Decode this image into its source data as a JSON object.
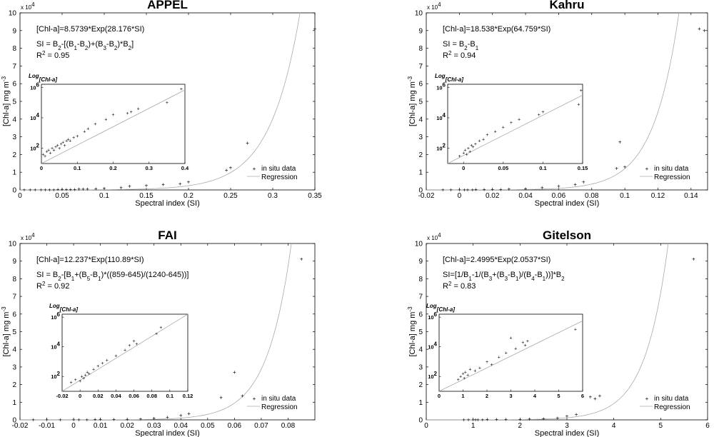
{
  "chart_data": [
    {
      "type": "scatter",
      "title": "APPEL",
      "xlabel": "Spectral index (SI)",
      "ylabel_main": "[Chl-a] mg m",
      "ylabel_sup": "-3",
      "xlim": [
        0,
        0.35
      ],
      "ylim": [
        0,
        10
      ],
      "xticks": [
        0,
        0.05,
        0.1,
        0.15,
        0.2,
        0.25,
        0.3,
        0.35
      ],
      "xtick_labels": [
        "0",
        "0.05",
        "0.1",
        "0.15",
        "0.2",
        "0.25",
        "0.3",
        "0.35"
      ],
      "yticks": [
        0,
        1,
        2,
        3,
        4,
        5,
        6,
        7,
        8,
        9,
        10
      ],
      "ytick_labels": [
        "0",
        "1",
        "2",
        "3",
        "4",
        "5",
        "6",
        "7",
        "8",
        "9",
        "10"
      ],
      "y_multiplier_base": "x 10",
      "y_multiplier_exp": "4",
      "regression": {
        "a": 8.5739,
        "b": 28.176,
        "scale": 10000
      },
      "equation": {
        "main": "[Chl-a]=8.5739*Exp(28.176*SI)"
      },
      "si_def": [
        [
          "SI = B",
          ""
        ],
        [
          "2",
          "sub"
        ],
        [
          "-[(B",
          ""
        ],
        [
          "1",
          "sub"
        ],
        [
          "-B",
          ""
        ],
        [
          "2",
          "sub"
        ],
        [
          ")+(B",
          ""
        ],
        [
          "3",
          "sub"
        ],
        [
          "-B",
          ""
        ],
        [
          "2",
          "sub"
        ],
        [
          ")*B",
          ""
        ],
        [
          "2",
          "sub"
        ],
        [
          "]",
          ""
        ]
      ],
      "r2": {
        "label": "R",
        "sup": "2",
        "value": "=  0.95"
      },
      "points": [
        [
          0.005,
          0.004
        ],
        [
          0.012,
          0.003
        ],
        [
          0.018,
          0.005
        ],
        [
          0.025,
          0.004
        ],
        [
          0.03,
          0.006
        ],
        [
          0.035,
          0.008
        ],
        [
          0.04,
          0.01
        ],
        [
          0.045,
          0.012
        ],
        [
          0.05,
          0.015
        ],
        [
          0.055,
          0.02
        ],
        [
          0.06,
          0.025
        ],
        [
          0.065,
          0.03
        ],
        [
          0.07,
          0.035
        ],
        [
          0.075,
          0.04
        ],
        [
          0.08,
          0.05
        ],
        [
          0.09,
          0.06
        ],
        [
          0.1,
          0.08
        ],
        [
          0.12,
          0.12
        ],
        [
          0.13,
          0.2
        ],
        [
          0.15,
          0.25
        ],
        [
          0.17,
          0.3
        ],
        [
          0.19,
          0.35
        ],
        [
          0.2,
          0.45
        ],
        [
          0.245,
          1.1
        ],
        [
          0.25,
          1.25
        ],
        [
          0.27,
          2.65
        ],
        [
          0.35,
          9.1
        ]
      ],
      "legend": [
        "in situ data",
        "Regression"
      ],
      "inset": {
        "title_main": "Log",
        "title_sub": "[Chl-a]",
        "xlim": [
          0,
          0.4
        ],
        "xticks": [
          0,
          0.1,
          0.2,
          0.3,
          0.4
        ],
        "xtick_labels": [
          "0",
          "0.1",
          "0.2",
          "0.3",
          "0.4"
        ],
        "ylim": [
          1,
          6.2
        ],
        "yticks": [
          2,
          4,
          6
        ],
        "ytick_base": "10",
        "ytick_exps": [
          "2",
          "4",
          "6"
        ],
        "points": [
          [
            0.005,
            1.6
          ],
          [
            0.01,
            1.5
          ],
          [
            0.015,
            1.8
          ],
          [
            0.02,
            1.9
          ],
          [
            0.025,
            1.7
          ],
          [
            0.03,
            2.0
          ],
          [
            0.035,
            1.9
          ],
          [
            0.04,
            2.1
          ],
          [
            0.045,
            2.2
          ],
          [
            0.05,
            2.0
          ],
          [
            0.055,
            2.3
          ],
          [
            0.06,
            2.4
          ],
          [
            0.065,
            2.2
          ],
          [
            0.07,
            2.5
          ],
          [
            0.075,
            2.6
          ],
          [
            0.08,
            2.5
          ],
          [
            0.09,
            2.7
          ],
          [
            0.1,
            2.8
          ],
          [
            0.12,
            3.1
          ],
          [
            0.13,
            3.3
          ],
          [
            0.15,
            3.6
          ],
          [
            0.18,
            3.9
          ],
          [
            0.2,
            4.2
          ],
          [
            0.24,
            4.3
          ],
          [
            0.25,
            4.4
          ],
          [
            0.27,
            4.6
          ],
          [
            0.35,
            5.0
          ],
          [
            0.39,
            5.9
          ]
        ]
      }
    },
    {
      "type": "scatter",
      "title": "Kahru",
      "xlabel": "Spectral index (SI)",
      "ylabel_main": "[Chl-a] mg m",
      "ylabel_sup": "-3",
      "xlim": [
        -0.02,
        0.15
      ],
      "ylim": [
        0,
        10
      ],
      "xticks": [
        -0.02,
        0,
        0.02,
        0.04,
        0.06,
        0.08,
        0.1,
        0.12,
        0.14
      ],
      "xtick_labels": [
        "-0.02",
        "0",
        "0.02",
        "0.04",
        "0.06",
        "0.08",
        "0.1",
        "0.12",
        "0.14"
      ],
      "yticks": [
        0,
        1,
        2,
        3,
        4,
        5,
        6,
        7,
        8,
        9,
        10
      ],
      "ytick_labels": [
        "0",
        "1",
        "2",
        "3",
        "4",
        "5",
        "6",
        "7",
        "8",
        "9",
        "10"
      ],
      "y_multiplier_base": "x 10",
      "y_multiplier_exp": "4",
      "regression": {
        "a": 18.538,
        "b": 64.759,
        "scale": 10000
      },
      "equation": {
        "main": "[Chl-a]=18.538*Exp(64.759*SI)"
      },
      "si_def": [
        [
          "SI = B",
          ""
        ],
        [
          "2",
          "sub"
        ],
        [
          "-B",
          ""
        ],
        [
          "1",
          "sub"
        ]
      ],
      "r2": {
        "label": "R",
        "sup": "2",
        "value": "=  0.94"
      },
      "points": [
        [
          -0.01,
          0.003
        ],
        [
          -0.005,
          0.004
        ],
        [
          0,
          0.005
        ],
        [
          0.003,
          0.006
        ],
        [
          0.005,
          0.008
        ],
        [
          0.008,
          0.01
        ],
        [
          0.01,
          0.012
        ],
        [
          0.015,
          0.015
        ],
        [
          0.02,
          0.02
        ],
        [
          0.025,
          0.03
        ],
        [
          0.03,
          0.04
        ],
        [
          0.04,
          0.06
        ],
        [
          0.05,
          0.12
        ],
        [
          0.06,
          0.2
        ],
        [
          0.07,
          0.3
        ],
        [
          0.075,
          0.45
        ],
        [
          0.095,
          1.2
        ],
        [
          0.1,
          1.3
        ],
        [
          0.097,
          2.7
        ],
        [
          0.145,
          9.1
        ],
        [
          0.148,
          9.0
        ]
      ],
      "legend": [
        "in situ data",
        "Regression"
      ],
      "inset": {
        "title_main": "Log",
        "title_sub": "[Chl-a]",
        "xlim": [
          -0.02,
          0.15
        ],
        "xticks": [
          0,
          0.05,
          0.1,
          0.15
        ],
        "xtick_labels": [
          "0",
          "0.05",
          "0.1",
          "0.15"
        ],
        "ylim": [
          1,
          6.2
        ],
        "yticks": [
          2,
          4,
          6
        ],
        "ytick_base": "10",
        "ytick_exps": [
          "2",
          "4",
          "6"
        ],
        "points": [
          [
            -0.005,
            1.5
          ],
          [
            0,
            1.7
          ],
          [
            0.002,
            1.9
          ],
          [
            0.004,
            1.6
          ],
          [
            0.006,
            2.0
          ],
          [
            0.008,
            1.8
          ],
          [
            0.01,
            2.2
          ],
          [
            0.012,
            2.1
          ],
          [
            0.015,
            2.3
          ],
          [
            0.02,
            2.5
          ],
          [
            0.025,
            2.6
          ],
          [
            0.03,
            2.9
          ],
          [
            0.04,
            3.1
          ],
          [
            0.05,
            3.4
          ],
          [
            0.06,
            3.7
          ],
          [
            0.07,
            3.9
          ],
          [
            0.095,
            4.2
          ],
          [
            0.1,
            4.4
          ],
          [
            0.145,
            4.9
          ],
          [
            0.148,
            5.8
          ]
        ]
      }
    },
    {
      "type": "scatter",
      "title": "FAI",
      "xlabel": "Spectral index (SI)",
      "ylabel_main": "[Chl-a] mg m",
      "ylabel_sup": "-3",
      "xlim": [
        -0.02,
        0.09
      ],
      "ylim": [
        0,
        10
      ],
      "xticks": [
        -0.02,
        -0.01,
        0,
        0.01,
        0.02,
        0.03,
        0.04,
        0.05,
        0.06,
        0.07,
        0.08
      ],
      "xtick_labels": [
        "-0.02",
        "-0.01",
        "0",
        "0.01",
        "0.02",
        "0.03",
        "0.04",
        "0.05",
        "0.06",
        "0.07",
        "0.08"
      ],
      "yticks": [
        0,
        1,
        2,
        3,
        4,
        5,
        6,
        7,
        8,
        9,
        10
      ],
      "ytick_labels": [
        "0",
        "1",
        "2",
        "3",
        "4",
        "5",
        "6",
        "7",
        "8",
        "9",
        "10"
      ],
      "y_multiplier_base": "x 10",
      "y_multiplier_exp": "4",
      "regression": {
        "a": 12.237,
        "b": 110.89,
        "scale": 10000
      },
      "equation": {
        "main": "[Chl-a]=12.237*Exp(110.89*SI)"
      },
      "si_def": [
        [
          "SI = B",
          ""
        ],
        [
          "2",
          "sub"
        ],
        [
          "-[B",
          ""
        ],
        [
          "1",
          "sub"
        ],
        [
          "+(B",
          ""
        ],
        [
          "5",
          "sub"
        ],
        [
          "-B",
          ""
        ],
        [
          "1",
          "sub"
        ],
        [
          ")*((859-645)/(1240-645))]",
          ""
        ]
      ],
      "r2": {
        "label": "R",
        "sup": "2",
        "value": "=  0.92"
      },
      "points": [
        [
          -0.015,
          0.003
        ],
        [
          -0.01,
          0.004
        ],
        [
          -0.005,
          0.005
        ],
        [
          0,
          0.006
        ],
        [
          0.002,
          0.008
        ],
        [
          0.005,
          0.01
        ],
        [
          0.008,
          0.012
        ],
        [
          0.01,
          0.015
        ],
        [
          0.015,
          0.02
        ],
        [
          0.02,
          0.03
        ],
        [
          0.025,
          0.05
        ],
        [
          0.03,
          0.08
        ],
        [
          0.035,
          0.15
        ],
        [
          0.04,
          0.25
        ],
        [
          0.043,
          0.35
        ],
        [
          0.055,
          1.25
        ],
        [
          0.06,
          2.7
        ],
        [
          0.063,
          1.35
        ],
        [
          0.085,
          9.1
        ]
      ],
      "legend": [
        "in situ data",
        "Regression"
      ],
      "inset": {
        "title_main": "Log",
        "title_sub": "[Chl-a]",
        "xlim": [
          -0.02,
          0.12
        ],
        "xticks": [
          -0.02,
          0,
          0.02,
          0.04,
          0.06,
          0.08,
          0.1,
          0.12
        ],
        "xtick_labels": [
          "-0.02",
          "0",
          "0.02",
          "0.04",
          "0.06",
          "0.08",
          "0.1",
          "0.12"
        ],
        "ylim": [
          1,
          6.2
        ],
        "yticks": [
          2,
          4,
          6
        ],
        "ytick_base": "10",
        "ytick_exps": [
          "2",
          "4",
          "6"
        ],
        "points": [
          [
            -0.01,
            1.6
          ],
          [
            -0.005,
            1.8
          ],
          [
            0,
            1.7
          ],
          [
            0.002,
            2.0
          ],
          [
            0.004,
            1.9
          ],
          [
            0.006,
            2.1
          ],
          [
            0.008,
            2.3
          ],
          [
            0.01,
            2.2
          ],
          [
            0.015,
            2.5
          ],
          [
            0.02,
            2.7
          ],
          [
            0.025,
            2.9
          ],
          [
            0.03,
            3.1
          ],
          [
            0.04,
            3.4
          ],
          [
            0.05,
            3.8
          ],
          [
            0.055,
            4.1
          ],
          [
            0.06,
            4.4
          ],
          [
            0.063,
            4.2
          ],
          [
            0.085,
            4.9
          ],
          [
            0.09,
            5.3
          ]
        ]
      }
    },
    {
      "type": "scatter",
      "title": "Gitelson",
      "xlabel": "Spectral index (SI)",
      "ylabel_main": "[Chl-a] mg m",
      "ylabel_sup": "-3",
      "xlim": [
        0,
        6
      ],
      "ylim": [
        0,
        10
      ],
      "xticks": [
        0,
        1,
        2,
        3,
        4,
        5,
        6
      ],
      "xtick_labels": [
        "0",
        "1",
        "2",
        "3",
        "4",
        "5",
        "6"
      ],
      "yticks": [
        0,
        1,
        2,
        3,
        4,
        5,
        6,
        7,
        8,
        9,
        10
      ],
      "ytick_labels": [
        "0",
        "1",
        "2",
        "3",
        "4",
        "5",
        "6",
        "7",
        "8",
        "9",
        "10"
      ],
      "y_multiplier_base": "x 10",
      "y_multiplier_exp": "4",
      "regression": {
        "a": 2.4995,
        "b": 2.0537,
        "scale": 10000
      },
      "equation": {
        "main": "[Chl-a]=2.4995*Exp(2.0537*SI)"
      },
      "si_def": [
        [
          "SI=[1/B",
          ""
        ],
        [
          "1",
          "sub"
        ],
        [
          "-1/(B",
          ""
        ],
        [
          "3",
          "sub"
        ],
        [
          "+(B",
          ""
        ],
        [
          "3",
          "sub"
        ],
        [
          "-B",
          ""
        ],
        [
          "1",
          "sub"
        ],
        [
          ")/(B",
          ""
        ],
        [
          "4",
          "sub"
        ],
        [
          "-B",
          ""
        ],
        [
          "1",
          "sub"
        ],
        [
          "))]*B",
          ""
        ],
        [
          "2",
          "sub"
        ]
      ],
      "r2": {
        "label": "R",
        "sup": "2",
        "value": "=  0.83"
      },
      "points": [
        [
          0.8,
          0.003
        ],
        [
          0.9,
          0.004
        ],
        [
          1.0,
          0.005
        ],
        [
          1.05,
          0.006
        ],
        [
          1.1,
          0.008
        ],
        [
          1.2,
          0.01
        ],
        [
          1.3,
          0.012
        ],
        [
          1.5,
          0.015
        ],
        [
          1.7,
          0.02
        ],
        [
          2.0,
          0.03
        ],
        [
          2.2,
          0.04
        ],
        [
          2.5,
          0.06
        ],
        [
          2.8,
          0.1
        ],
        [
          3.0,
          0.2
        ],
        [
          3.2,
          0.3
        ],
        [
          3.5,
          1.3
        ],
        [
          3.6,
          1.2
        ],
        [
          3.7,
          1.35
        ],
        [
          5.7,
          9.1
        ]
      ],
      "legend": [
        "in situ data",
        "Regression"
      ],
      "inset": {
        "title_main": "Log",
        "title_sub": "[Chl-a]",
        "xlim": [
          0,
          6
        ],
        "xticks": [
          0,
          1,
          2,
          3,
          4,
          5,
          6
        ],
        "xtick_labels": [
          "0",
          "1",
          "2",
          "3",
          "4",
          "5",
          "6"
        ],
        "ylim": [
          1,
          6.2
        ],
        "yticks": [
          2,
          4,
          6
        ],
        "ytick_base": "10",
        "ytick_exps": [
          "2",
          "4",
          "6"
        ],
        "points": [
          [
            0.8,
            1.8
          ],
          [
            0.9,
            2.0
          ],
          [
            1.0,
            2.2
          ],
          [
            1.05,
            1.9
          ],
          [
            1.1,
            2.3
          ],
          [
            1.2,
            2.1
          ],
          [
            1.3,
            2.5
          ],
          [
            1.5,
            2.4
          ],
          [
            1.7,
            2.6
          ],
          [
            2.0,
            3.0
          ],
          [
            2.2,
            2.8
          ],
          [
            2.5,
            3.3
          ],
          [
            2.8,
            3.6
          ],
          [
            3.0,
            4.6
          ],
          [
            3.2,
            3.9
          ],
          [
            3.5,
            4.3
          ],
          [
            3.6,
            4.1
          ],
          [
            3.7,
            4.4
          ],
          [
            5.7,
            5.2
          ]
        ]
      }
    }
  ]
}
